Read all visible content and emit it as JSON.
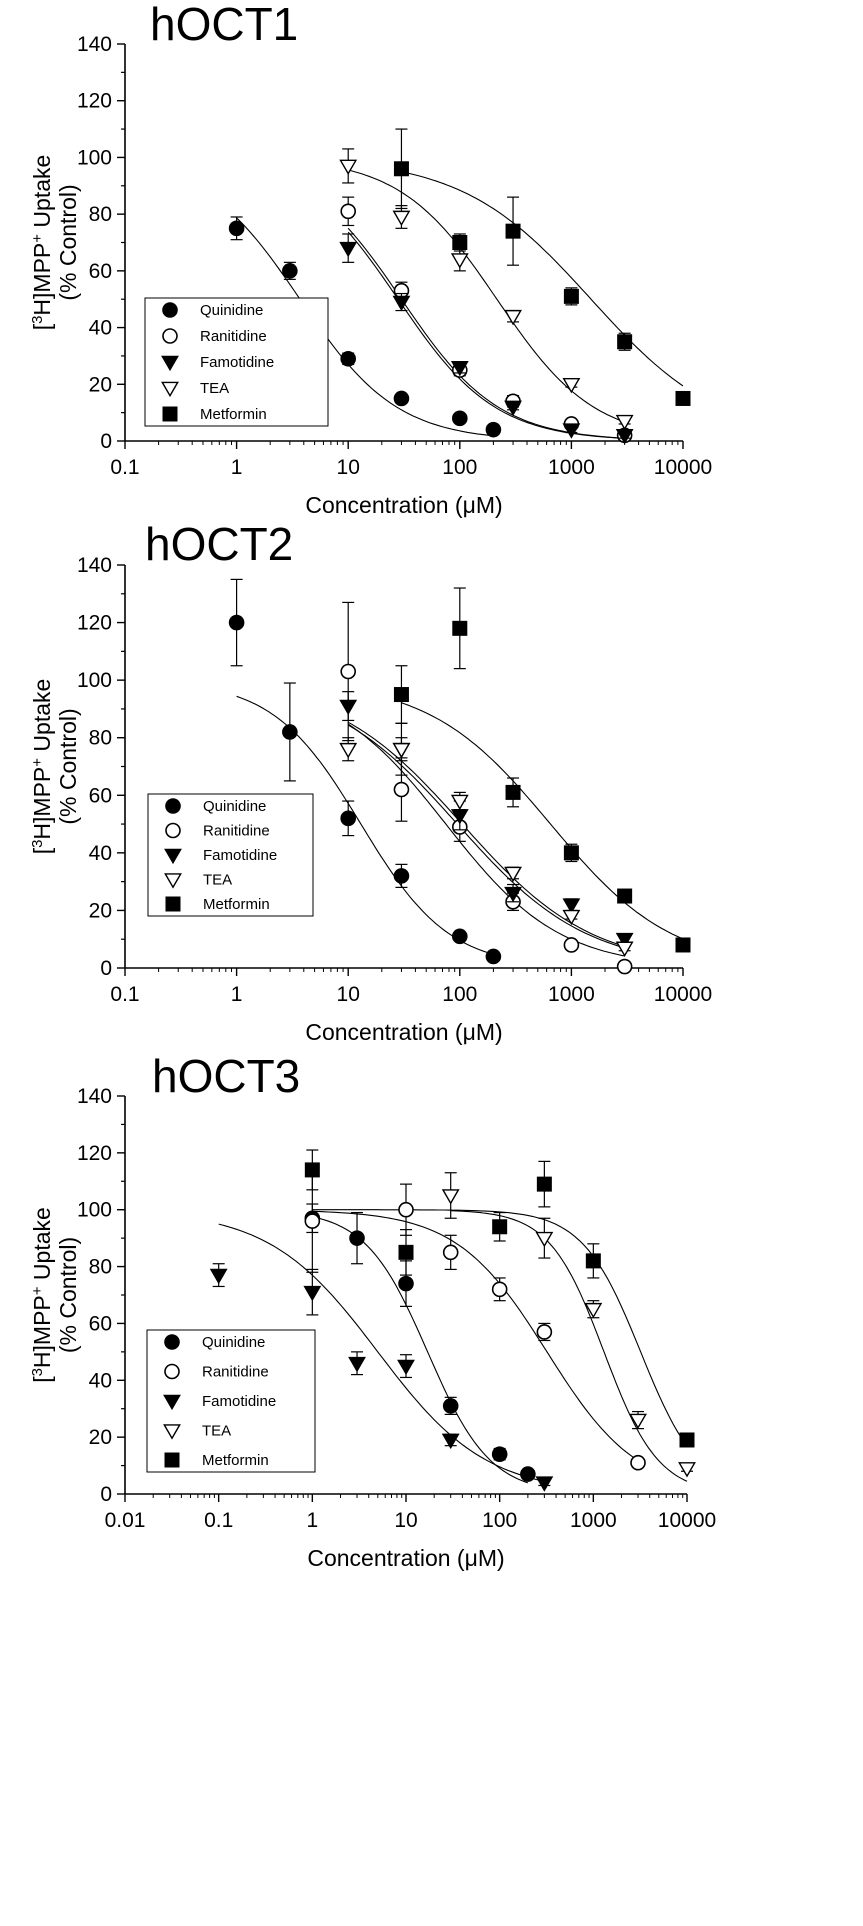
{
  "figure": {
    "ylabel_line1": "[3H]MPP+ Uptake",
    "ylabel_line2": "(% Control)",
    "xlabel": "Concentration (μM)"
  },
  "chart_data": [
    {
      "type": "scatter",
      "title": "hOCT1",
      "xlabel": "Concentration (μM)",
      "ylabel": "[3H]MPP+ Uptake (% Control)",
      "x_scale": "log",
      "xlim": [
        0.1,
        10000
      ],
      "ylim": [
        0,
        140
      ],
      "x_ticks": [
        "0.1",
        "1",
        "10",
        "100",
        "1000",
        "10000"
      ],
      "y_ticks": [
        "0",
        "20",
        "40",
        "60",
        "80",
        "100",
        "120",
        "140"
      ],
      "legend_position": "lower-left",
      "grid": false,
      "series": [
        {
          "name": "Quinidine",
          "marker": "filled-circle",
          "points": [
            [
              1,
              75,
              4
            ],
            [
              3,
              60,
              3
            ],
            [
              10,
              29,
              2
            ],
            [
              30,
              15,
              1
            ],
            [
              100,
              8,
              1
            ],
            [
              200,
              4,
              1
            ]
          ],
          "fit": {
            "ic50": 3.7,
            "top": 100,
            "slope": 1
          }
        },
        {
          "name": "Ranitidine",
          "marker": "open-circle",
          "points": [
            [
              10,
              81,
              5
            ],
            [
              30,
              53,
              3
            ],
            [
              100,
              25,
              2
            ],
            [
              300,
              14,
              2
            ],
            [
              1000,
              6,
              1
            ],
            [
              3000,
              2,
              1
            ]
          ],
          "fit": {
            "ic50": 30,
            "top": 100,
            "slope": 1
          }
        },
        {
          "name": "Famotidine",
          "marker": "filled-triangle-down",
          "points": [
            [
              10,
              68,
              5
            ],
            [
              30,
              49,
              3
            ],
            [
              100,
              26,
              2
            ],
            [
              300,
              12,
              1
            ],
            [
              1000,
              4,
              1
            ],
            [
              3000,
              2,
              1
            ]
          ],
          "fit": {
            "ic50": 28,
            "top": 100,
            "slope": 1
          }
        },
        {
          "name": "TEA",
          "marker": "open-triangle-down",
          "points": [
            [
              10,
              97,
              6
            ],
            [
              30,
              79,
              4
            ],
            [
              100,
              64,
              4
            ],
            [
              300,
              44,
              2
            ],
            [
              1000,
              20,
              1
            ],
            [
              3000,
              7,
              1
            ]
          ],
          "fit": {
            "ic50": 215,
            "top": 100,
            "slope": 1
          }
        },
        {
          "name": "Metformin",
          "marker": "filled-square",
          "points": [
            [
              30,
              96,
              14
            ],
            [
              100,
              70,
              3
            ],
            [
              300,
              74,
              12
            ],
            [
              1000,
              51,
              3
            ],
            [
              3000,
              35,
              3
            ],
            [
              10000,
              15,
              1
            ]
          ],
          "fit": {
            "ic50": 1500,
            "top": 100,
            "slope": 0.75
          }
        }
      ]
    },
    {
      "type": "scatter",
      "title": "hOCT2",
      "xlabel": "Concentration (μM)",
      "ylabel": "[3H]MPP+ Uptake (% Control)",
      "x_scale": "log",
      "xlim": [
        0.1,
        10000
      ],
      "ylim": [
        0,
        140
      ],
      "x_ticks": [
        "0.1",
        "1",
        "10",
        "100",
        "1000",
        "10000"
      ],
      "y_ticks": [
        "0",
        "20",
        "40",
        "60",
        "80",
        "100",
        "120",
        "140"
      ],
      "legend_position": "lower-left",
      "grid": false,
      "series": [
        {
          "name": "Quinidine",
          "marker": "filled-circle",
          "points": [
            [
              1,
              120,
              15
            ],
            [
              3,
              82,
              17
            ],
            [
              10,
              52,
              6
            ],
            [
              30,
              32,
              4
            ],
            [
              100,
              11,
              1
            ],
            [
              200,
              4,
              1
            ]
          ],
          "fit": {
            "ic50": 13,
            "top": 100,
            "slope": 1.1
          }
        },
        {
          "name": "Ranitidine",
          "marker": "open-circle",
          "points": [
            [
              10,
              103,
              24
            ],
            [
              30,
              62,
              11
            ],
            [
              100,
              49,
              5
            ],
            [
              300,
              23,
              3
            ],
            [
              1000,
              8,
              1
            ],
            [
              3000,
              0.5,
              0.5
            ]
          ],
          "fit": {
            "ic50": 75,
            "top": 100,
            "slope": 0.85
          }
        },
        {
          "name": "Famotidine",
          "marker": "filled-triangle-down",
          "points": [
            [
              10,
              91,
              5
            ],
            [
              30,
              76,
              9
            ],
            [
              100,
              53,
              5
            ],
            [
              300,
              26,
              3
            ],
            [
              1000,
              22,
              2
            ],
            [
              3000,
              10,
              1
            ]
          ],
          "fit": {
            "ic50": 95,
            "top": 100,
            "slope": 0.75
          }
        },
        {
          "name": "TEA",
          "marker": "open-triangle-down",
          "points": [
            [
              10,
              76,
              4
            ],
            [
              30,
              76,
              4
            ],
            [
              100,
              58,
              3
            ],
            [
              300,
              33,
              2
            ],
            [
              1000,
              18,
              1
            ],
            [
              3000,
              7,
              1
            ]
          ],
          "fit": {
            "ic50": 105,
            "top": 100,
            "slope": 0.75
          }
        },
        {
          "name": "Metformin",
          "marker": "filled-square",
          "points": [
            [
              30,
              95,
              10
            ],
            [
              100,
              118,
              14
            ],
            [
              300,
              61,
              5
            ],
            [
              1000,
              40,
              3
            ],
            [
              3000,
              25,
              1
            ],
            [
              10000,
              8,
              1
            ]
          ],
          "fit": {
            "ic50": 650,
            "top": 100,
            "slope": 0.8
          }
        }
      ]
    },
    {
      "type": "scatter",
      "title": "hOCT3",
      "xlabel": "Concentration (μM)",
      "ylabel": "[3H]MPP+ Uptake (% Control)",
      "x_scale": "log",
      "xlim": [
        0.01,
        10000
      ],
      "ylim": [
        0,
        140
      ],
      "x_ticks": [
        "0.01",
        "0.1",
        "1",
        "10",
        "100",
        "1000",
        "10000"
      ],
      "y_ticks": [
        "0",
        "20",
        "40",
        "60",
        "80",
        "100",
        "120",
        "140"
      ],
      "legend_position": "lower-left",
      "grid": false,
      "series": [
        {
          "name": "Quinidine",
          "marker": "filled-circle",
          "points": [
            [
              1,
              97,
              5
            ],
            [
              3,
              90,
              9
            ],
            [
              10,
              74,
              8
            ],
            [
              30,
              31,
              3
            ],
            [
              100,
              14,
              2
            ],
            [
              200,
              7,
              1
            ]
          ],
          "fit": {
            "ic50": 17,
            "top": 100,
            "slope": 1.3
          }
        },
        {
          "name": "Ranitidine",
          "marker": "open-circle",
          "points": [
            [
              1,
              96,
              18
            ],
            [
              10,
              100,
              9
            ],
            [
              30,
              85,
              6
            ],
            [
              100,
              72,
              4
            ],
            [
              300,
              57,
              3
            ],
            [
              3000,
              11,
              1
            ]
          ],
          "fit": {
            "ic50": 320,
            "top": 100,
            "slope": 0.9
          }
        },
        {
          "name": "Famotidine",
          "marker": "filled-triangle-down",
          "points": [
            [
              0.1,
              77,
              4
            ],
            [
              1,
              71,
              8
            ],
            [
              3,
              46,
              4
            ],
            [
              10,
              45,
              4
            ],
            [
              30,
              19,
              2
            ],
            [
              300,
              4,
              1
            ]
          ],
          "fit": {
            "ic50": 5,
            "top": 100,
            "slope": 0.75
          }
        },
        {
          "name": "TEA",
          "marker": "open-triangle-down",
          "points": [
            [
              30,
              105,
              8
            ],
            [
              300,
              90,
              7
            ],
            [
              1000,
              65,
              3
            ],
            [
              3000,
              26,
              3
            ],
            [
              10000,
              9,
              1
            ]
          ],
          "fit": {
            "ic50": 1300,
            "top": 100,
            "slope": 1.5
          }
        },
        {
          "name": "Metformin",
          "marker": "filled-square",
          "points": [
            [
              1,
              114,
              7
            ],
            [
              10,
              85,
              8
            ],
            [
              100,
              94,
              5
            ],
            [
              300,
              109,
              8
            ],
            [
              1000,
              82,
              6
            ],
            [
              10000,
              19,
              1
            ]
          ],
          "fit": {
            "ic50": 3200,
            "top": 100,
            "slope": 1.4
          }
        }
      ]
    }
  ]
}
